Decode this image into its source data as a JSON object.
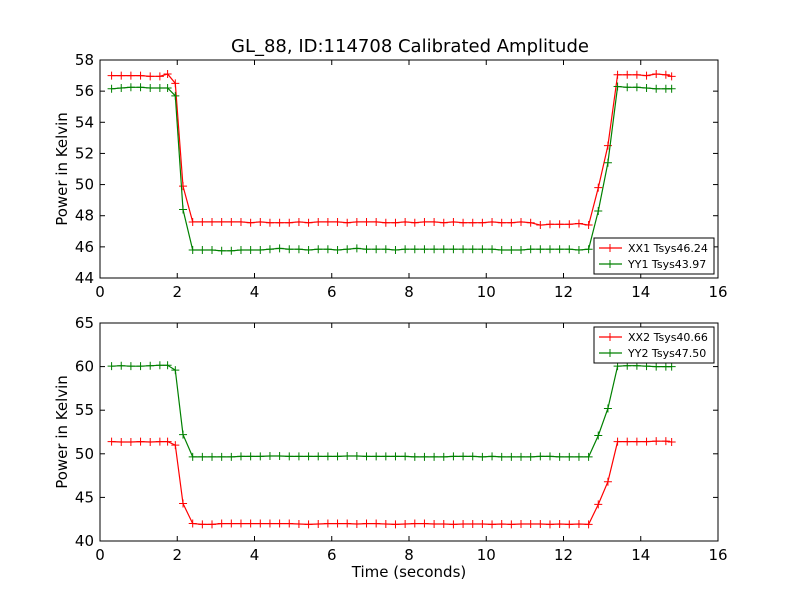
{
  "figure": {
    "title": "GL_88, ID:114708 Calibrated Amplitude"
  },
  "colors": {
    "xx": "#ff0000",
    "yy": "#008000"
  },
  "chart_data": [
    {
      "type": "line",
      "title": "GL_88, ID:114708 Calibrated Amplitude",
      "xlabel": "",
      "ylabel": "Power in Kelvin",
      "xlim": [
        0,
        16
      ],
      "ylim": [
        44,
        58
      ],
      "xticks": [
        "0",
        "2",
        "4",
        "6",
        "8",
        "10",
        "12",
        "14",
        "16"
      ],
      "yticks": [
        "44",
        "46",
        "48",
        "50",
        "52",
        "54",
        "56",
        "58"
      ],
      "legend_position": "lower-right",
      "x": [
        0.3,
        0.55,
        0.8,
        1.05,
        1.3,
        1.55,
        1.75,
        1.95,
        2.15,
        2.4,
        2.65,
        2.9,
        3.15,
        3.4,
        3.65,
        3.9,
        4.15,
        4.4,
        4.65,
        4.9,
        5.15,
        5.4,
        5.65,
        5.9,
        6.15,
        6.4,
        6.65,
        6.9,
        7.15,
        7.4,
        7.65,
        7.9,
        8.15,
        8.4,
        8.65,
        8.9,
        9.15,
        9.4,
        9.65,
        9.9,
        10.15,
        10.4,
        10.65,
        10.9,
        11.15,
        11.4,
        11.65,
        11.9,
        12.15,
        12.4,
        12.65,
        12.9,
        13.15,
        13.4,
        13.65,
        13.9,
        14.15,
        14.4,
        14.65,
        14.8
      ],
      "series": [
        {
          "name": "XX1 Tsys46.24",
          "color": "#ff0000",
          "values": [
            57.0,
            57.0,
            57.0,
            57.0,
            56.95,
            56.95,
            57.1,
            56.5,
            49.9,
            47.6,
            47.6,
            47.6,
            47.6,
            47.6,
            47.6,
            47.55,
            47.6,
            47.55,
            47.55,
            47.55,
            47.6,
            47.55,
            47.6,
            47.6,
            47.6,
            47.55,
            47.6,
            47.6,
            47.6,
            47.55,
            47.55,
            47.6,
            47.55,
            47.6,
            47.6,
            47.55,
            47.6,
            47.55,
            47.55,
            47.55,
            47.6,
            47.55,
            47.55,
            47.6,
            47.55,
            47.4,
            47.45,
            47.45,
            47.45,
            47.5,
            47.4,
            49.8,
            52.5,
            57.05,
            57.05,
            57.05,
            57.0,
            57.1,
            57.05,
            56.95
          ]
        },
        {
          "name": "YY1 Tsys43.97",
          "color": "#008000",
          "values": [
            56.15,
            56.2,
            56.25,
            56.25,
            56.2,
            56.2,
            56.2,
            55.7,
            48.4,
            45.8,
            45.8,
            45.8,
            45.75,
            45.75,
            45.8,
            45.8,
            45.8,
            45.85,
            45.9,
            45.85,
            45.85,
            45.8,
            45.85,
            45.85,
            45.8,
            45.85,
            45.9,
            45.85,
            45.85,
            45.85,
            45.8,
            45.85,
            45.85,
            45.85,
            45.85,
            45.85,
            45.85,
            45.85,
            45.85,
            45.85,
            45.85,
            45.8,
            45.8,
            45.8,
            45.85,
            45.85,
            45.85,
            45.85,
            45.85,
            45.8,
            45.85,
            48.3,
            51.4,
            56.3,
            56.25,
            56.25,
            56.2,
            56.15,
            56.15,
            56.15
          ]
        }
      ]
    },
    {
      "type": "line",
      "title": "",
      "xlabel": "Time (seconds)",
      "ylabel": "Power in Kelvin",
      "xlim": [
        0,
        16
      ],
      "ylim": [
        40,
        65
      ],
      "xticks": [
        "0",
        "2",
        "4",
        "6",
        "8",
        "10",
        "12",
        "14",
        "16"
      ],
      "yticks": [
        "40",
        "45",
        "50",
        "55",
        "60",
        "65"
      ],
      "legend_position": "upper-right",
      "x": [
        0.3,
        0.55,
        0.8,
        1.05,
        1.3,
        1.55,
        1.75,
        1.95,
        2.15,
        2.4,
        2.65,
        2.9,
        3.15,
        3.4,
        3.65,
        3.9,
        4.15,
        4.4,
        4.65,
        4.9,
        5.15,
        5.4,
        5.65,
        5.9,
        6.15,
        6.4,
        6.65,
        6.9,
        7.15,
        7.4,
        7.65,
        7.9,
        8.15,
        8.4,
        8.65,
        8.9,
        9.15,
        9.4,
        9.65,
        9.9,
        10.15,
        10.4,
        10.65,
        10.9,
        11.15,
        11.4,
        11.65,
        11.9,
        12.15,
        12.4,
        12.65,
        12.9,
        13.15,
        13.4,
        13.65,
        13.9,
        14.15,
        14.4,
        14.65,
        14.8
      ],
      "series": [
        {
          "name": "XX2 Tsys40.66",
          "color": "#ff0000",
          "values": [
            51.4,
            51.35,
            51.35,
            51.4,
            51.35,
            51.4,
            51.4,
            51.0,
            44.3,
            42.0,
            41.9,
            41.9,
            42.0,
            42.0,
            42.0,
            42.0,
            42.0,
            42.0,
            42.0,
            42.0,
            41.95,
            41.9,
            41.95,
            42.0,
            42.0,
            42.0,
            41.95,
            42.0,
            42.0,
            41.95,
            41.9,
            41.95,
            42.0,
            42.0,
            41.95,
            41.95,
            41.9,
            41.95,
            41.95,
            41.95,
            41.9,
            41.95,
            41.9,
            41.95,
            41.95,
            41.95,
            41.9,
            41.95,
            41.9,
            41.95,
            41.9,
            44.2,
            46.8,
            51.4,
            51.4,
            51.4,
            51.4,
            51.45,
            51.45,
            51.35
          ]
        },
        {
          "name": "YY2 Tsys47.50",
          "color": "#008000",
          "values": [
            60.05,
            60.1,
            60.05,
            60.05,
            60.1,
            60.15,
            60.15,
            59.6,
            52.2,
            49.65,
            49.65,
            49.65,
            49.65,
            49.65,
            49.7,
            49.7,
            49.7,
            49.75,
            49.75,
            49.7,
            49.7,
            49.7,
            49.7,
            49.7,
            49.7,
            49.75,
            49.75,
            49.7,
            49.7,
            49.7,
            49.7,
            49.7,
            49.65,
            49.65,
            49.65,
            49.65,
            49.7,
            49.7,
            49.7,
            49.65,
            49.7,
            49.65,
            49.65,
            49.65,
            49.65,
            49.7,
            49.7,
            49.65,
            49.65,
            49.65,
            49.65,
            52.1,
            55.2,
            60.05,
            60.1,
            60.1,
            60.05,
            60.0,
            60.0,
            60.0
          ]
        }
      ]
    }
  ]
}
